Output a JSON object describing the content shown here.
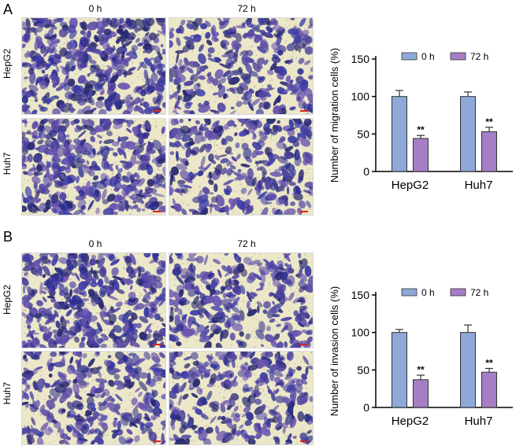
{
  "panels": [
    {
      "letter": "A",
      "columns": [
        "0 h",
        "72 h"
      ],
      "rows": [
        "HepG2",
        "Huh7"
      ]
    },
    {
      "letter": "B",
      "columns": [
        "0 h",
        "72 h"
      ],
      "rows": [
        "HepG2",
        "Huh7"
      ]
    }
  ],
  "chart_data": [
    {
      "type": "bar",
      "categories": [
        "HepG2",
        "Huh7"
      ],
      "series": [
        {
          "name": "0 h",
          "values": [
            100,
            100
          ],
          "errors": [
            8,
            6
          ],
          "color": "#8ea9d8"
        },
        {
          "name": "72 h",
          "values": [
            44,
            53
          ],
          "errors": [
            4,
            6
          ],
          "color": "#a57ec5"
        }
      ],
      "annotations": [
        "**",
        "**"
      ],
      "title": "",
      "xlabel": "",
      "ylabel": "Number of migration cells (%)",
      "ylim": [
        0,
        150
      ],
      "yticks": [
        0,
        50,
        100,
        150
      ],
      "legend": "top"
    },
    {
      "type": "bar",
      "categories": [
        "HepG2",
        "Huh7"
      ],
      "series": [
        {
          "name": "0 h",
          "values": [
            100,
            100
          ],
          "errors": [
            4,
            10
          ],
          "color": "#8ea9d8"
        },
        {
          "name": "72 h",
          "values": [
            37,
            47
          ],
          "errors": [
            6,
            5
          ],
          "color": "#a57ec5"
        }
      ],
      "annotations": [
        "**",
        "**"
      ],
      "title": "",
      "xlabel": "",
      "ylabel": "Number of invasion cells (%)",
      "ylim": [
        0,
        150
      ],
      "yticks": [
        0,
        50,
        100,
        150
      ],
      "legend": "top"
    }
  ]
}
